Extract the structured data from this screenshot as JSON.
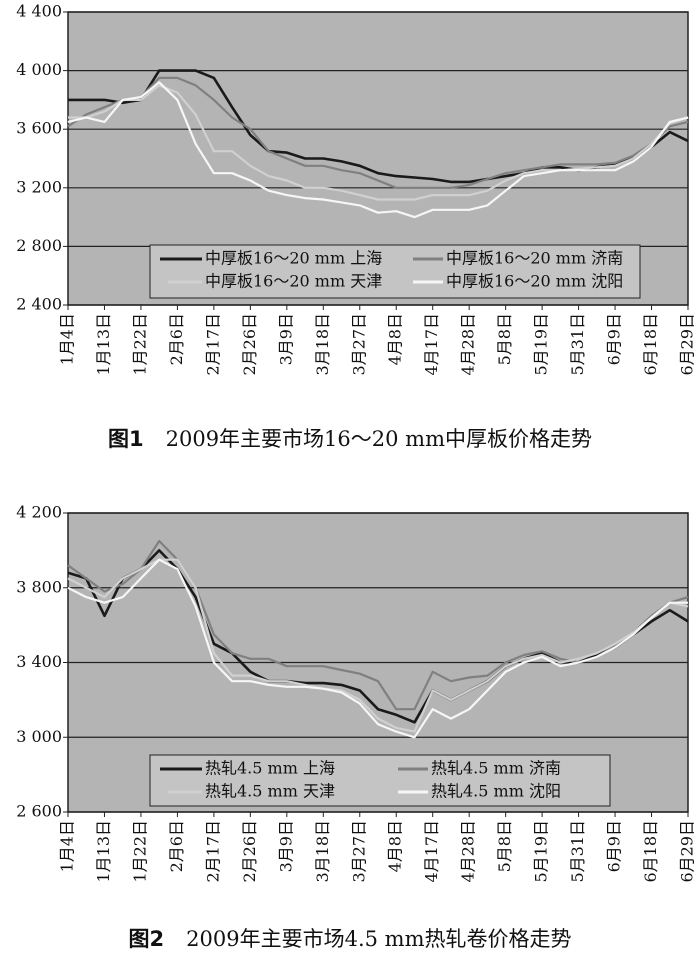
{
  "chart_data": [
    {
      "type": "line",
      "figure_label": "图1",
      "title": "2009年主要市场16～20 mm中厚板价格走势",
      "categories": [
        "1月4日",
        null,
        "1月13日",
        null,
        "1月22日",
        null,
        "2月6日",
        null,
        "2月17日",
        null,
        "2月26日",
        null,
        "3月9日",
        null,
        "3月18日",
        null,
        "3月27日",
        null,
        "4月8日",
        null,
        "4月17日",
        null,
        "4月28日",
        null,
        "5月8日",
        null,
        "5月19日",
        null,
        "5月31日",
        null,
        "6月9日",
        null,
        "6月18日",
        null,
        "6月29日"
      ],
      "ylim": [
        2400,
        4400
      ],
      "yticks": [
        {
          "value": 2400,
          "label": "2 400"
        },
        {
          "value": 2800,
          "label": "2 800"
        },
        {
          "value": 3200,
          "label": "3 200"
        },
        {
          "value": 3600,
          "label": "3 600"
        },
        {
          "value": 4000,
          "label": "4 000"
        },
        {
          "value": 4400,
          "label": "4 400"
        }
      ],
      "grid": true,
      "legend": "bottom",
      "series": [
        {
          "name": "中厚板16～20 mm 上海",
          "color": "#1a1a1a",
          "values": [
            3800,
            3800,
            3800,
            3780,
            3800,
            4000,
            4000,
            4000,
            3950,
            3750,
            3560,
            3450,
            3440,
            3400,
            3400,
            3380,
            3350,
            3300,
            3280,
            3270,
            3260,
            3240,
            3240,
            3260,
            3280,
            3300,
            3340,
            3340,
            3320,
            3340,
            3360,
            3400,
            3480,
            3580,
            3520
          ]
        },
        {
          "name": "中厚板16～20 mm 济南",
          "color": "#808080",
          "values": [
            3620,
            3700,
            3750,
            3800,
            3820,
            3950,
            3950,
            3900,
            3800,
            3680,
            3600,
            3450,
            3400,
            3350,
            3350,
            3320,
            3300,
            3250,
            3200,
            3200,
            3200,
            3200,
            3220,
            3260,
            3300,
            3320,
            3340,
            3360,
            3360,
            3360,
            3370,
            3420,
            3500,
            3620,
            3650
          ]
        },
        {
          "name": "中厚板16～20 mm 天津",
          "color": "#d0d0d0",
          "values": [
            3680,
            3680,
            3720,
            3800,
            3800,
            3900,
            3850,
            3700,
            3450,
            3450,
            3350,
            3280,
            3250,
            3200,
            3200,
            3180,
            3150,
            3120,
            3120,
            3120,
            3150,
            3150,
            3150,
            3180,
            3250,
            3300,
            3320,
            3320,
            3330,
            3340,
            3350,
            3400,
            3500,
            3640,
            3680
          ]
        },
        {
          "name": "中厚板16～20 mm 沈阳",
          "color": "#f6f6f6",
          "values": [
            3650,
            3680,
            3650,
            3800,
            3820,
            3920,
            3800,
            3500,
            3300,
            3300,
            3250,
            3180,
            3150,
            3130,
            3120,
            3100,
            3080,
            3030,
            3040,
            3000,
            3050,
            3050,
            3050,
            3080,
            3180,
            3280,
            3300,
            3320,
            3320,
            3320,
            3320,
            3380,
            3480,
            3650,
            3680
          ]
        }
      ]
    },
    {
      "type": "line",
      "figure_label": "图2",
      "title": "2009年主要市场4.5 mm热轧卷价格走势",
      "categories": [
        "1月4日",
        null,
        "1月13日",
        null,
        "1月22日",
        null,
        "2月6日",
        null,
        "2月17日",
        null,
        "2月26日",
        null,
        "3月9日",
        null,
        "3月18日",
        null,
        "3月27日",
        null,
        "4月8日",
        null,
        "4月17日",
        null,
        "4月28日",
        null,
        "5月8日",
        null,
        "5月19日",
        null,
        "5月31日",
        null,
        "6月9日",
        null,
        "6月18日",
        null,
        "6月29日"
      ],
      "ylim": [
        2600,
        4200
      ],
      "yticks": [
        {
          "value": 2600,
          "label": "2 600"
        },
        {
          "value": 3000,
          "label": "3 000"
        },
        {
          "value": 3400,
          "label": "3 400"
        },
        {
          "value": 3800,
          "label": "3 800"
        },
        {
          "value": 4200,
          "label": "4 200"
        }
      ],
      "grid": true,
      "legend": "bottom",
      "series": [
        {
          "name": "热轧4.5 mm 上海",
          "color": "#1a1a1a",
          "values": [
            3880,
            3850,
            3650,
            3850,
            3900,
            4000,
            3900,
            3750,
            3500,
            3450,
            3350,
            3300,
            3300,
            3290,
            3290,
            3280,
            3250,
            3150,
            3120,
            3080,
            3250,
            3200,
            3250,
            3300,
            3380,
            3420,
            3450,
            3400,
            3400,
            3440,
            3480,
            3550,
            3620,
            3680,
            3620
          ]
        },
        {
          "name": "热轧4.5 mm 济南",
          "color": "#808080",
          "values": [
            3920,
            3850,
            3780,
            3820,
            3900,
            4050,
            3950,
            3800,
            3550,
            3450,
            3420,
            3420,
            3380,
            3380,
            3380,
            3360,
            3340,
            3300,
            3150,
            3150,
            3350,
            3300,
            3320,
            3330,
            3400,
            3440,
            3460,
            3420,
            3400,
            3430,
            3490,
            3560,
            3650,
            3720,
            3750
          ]
        },
        {
          "name": "热轧4.5 mm 天津",
          "color": "#d0d0d0",
          "values": [
            3850,
            3800,
            3750,
            3850,
            3900,
            3950,
            3950,
            3800,
            3450,
            3330,
            3330,
            3300,
            3300,
            3280,
            3260,
            3250,
            3200,
            3100,
            3050,
            3030,
            3250,
            3200,
            3250,
            3300,
            3380,
            3420,
            3440,
            3400,
            3420,
            3450,
            3500,
            3560,
            3640,
            3720,
            3700
          ]
        },
        {
          "name": "热轧4.5 mm 沈阳",
          "color": "#f6f6f6",
          "values": [
            3800,
            3750,
            3720,
            3750,
            3850,
            3950,
            3900,
            3700,
            3400,
            3300,
            3300,
            3280,
            3270,
            3270,
            3260,
            3240,
            3180,
            3070,
            3030,
            3000,
            3150,
            3100,
            3150,
            3250,
            3350,
            3400,
            3430,
            3380,
            3400,
            3430,
            3480,
            3550,
            3640,
            3720,
            3720
          ]
        }
      ]
    }
  ]
}
